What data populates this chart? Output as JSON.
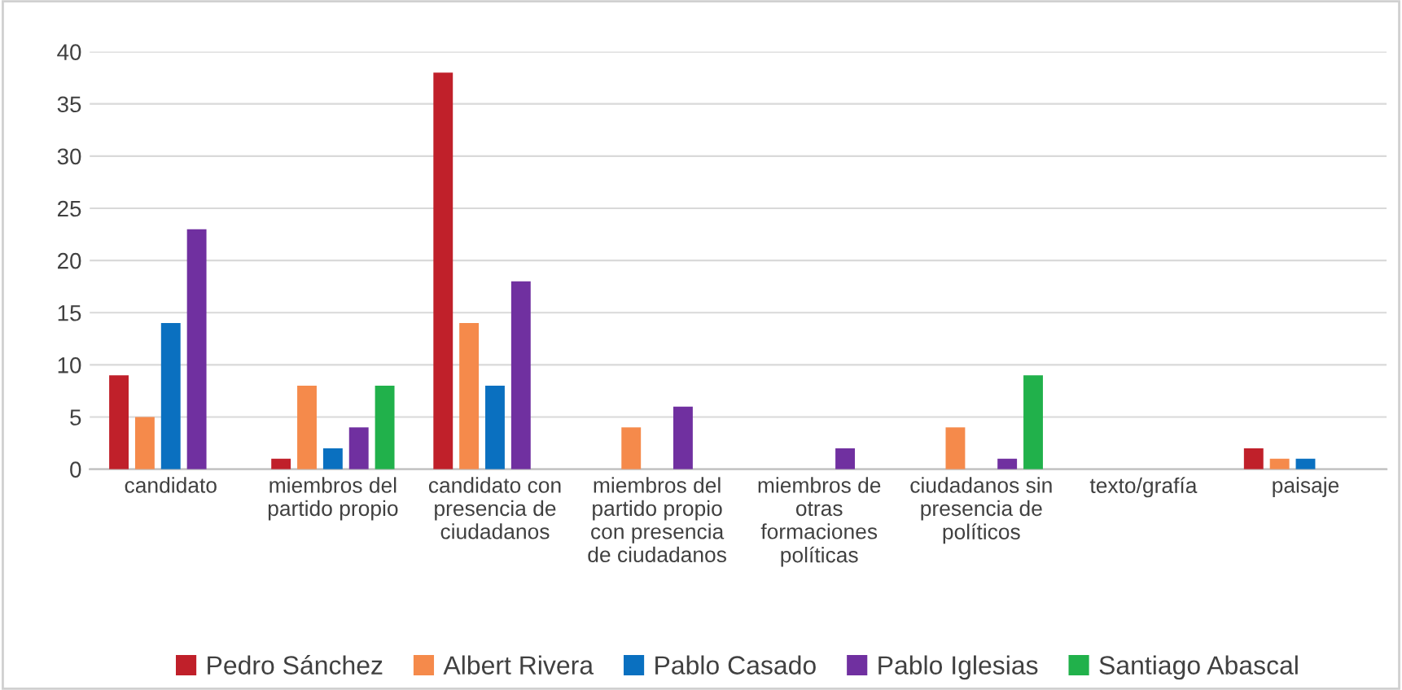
{
  "chart_data": {
    "type": "bar",
    "categories": [
      "candidato",
      "miembros del\npartido propio",
      "candidato con\npresencia de\nciudadanos",
      "miembros del\npartido propio\ncon presencia\nde ciudadanos",
      "miembros de\notras\nformaciones\npolíticas",
      "ciudadanos sin\npresencia de\npolíticos",
      "texto/grafía",
      "paisaje"
    ],
    "series": [
      {
        "name": "Pedro Sánchez",
        "color": "#c0202a",
        "values": [
          9,
          1,
          38,
          0,
          0,
          0,
          0,
          2
        ]
      },
      {
        "name": "Albert Rivera",
        "color": "#f58a4b",
        "values": [
          5,
          8,
          14,
          4,
          0,
          4,
          0,
          1
        ]
      },
      {
        "name": "Pablo Casado",
        "color": "#0a70c0",
        "values": [
          14,
          2,
          8,
          0,
          0,
          0,
          0,
          1
        ]
      },
      {
        "name": "Pablo Iglesias",
        "color": "#7030a0",
        "values": [
          23,
          4,
          18,
          6,
          2,
          1,
          0,
          0
        ]
      },
      {
        "name": "Santiago Abascal",
        "color": "#21b14b",
        "values": [
          0,
          8,
          0,
          0,
          0,
          9,
          0,
          0
        ]
      }
    ],
    "ylim": [
      0,
      40
    ],
    "yticks": [
      0,
      5,
      10,
      15,
      20,
      25,
      30,
      35,
      40
    ],
    "grid": "y",
    "legend": "bottom"
  }
}
